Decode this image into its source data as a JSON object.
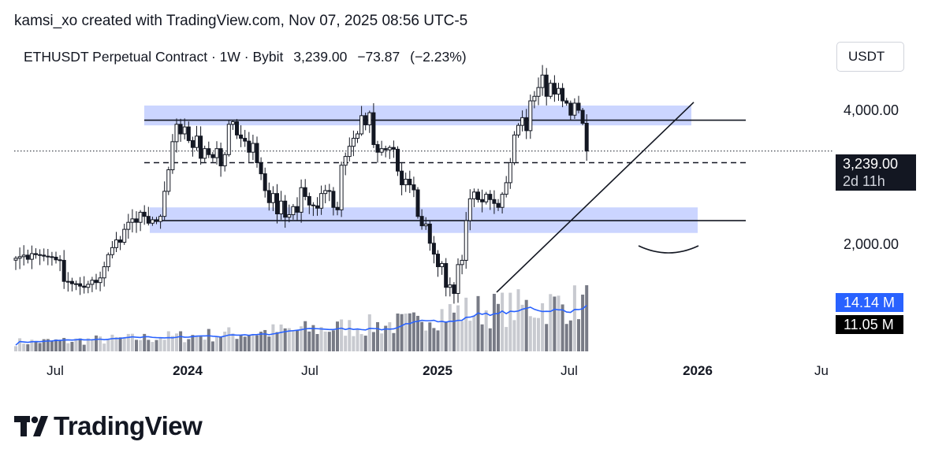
{
  "attribution": "kamsi_xo created with TradingView.com, Nov 07, 2025 08:56 UTC-5",
  "header": {
    "symbol": "ETHUSDT Perpetual Contract · 1W · Bybit",
    "last": "3,239.00",
    "change": "−73.87",
    "change_pct": "(−2.23%)"
  },
  "currency": "USDT",
  "price_axis": {
    "labels": [
      "4,000.00",
      "2,000.00"
    ]
  },
  "last_price_tag": {
    "price": "3,239.00",
    "countdown": "2d 11h"
  },
  "volume_tags": {
    "ma": "14.14 M",
    "volume": "11.05 M"
  },
  "time_axis": [
    {
      "label": "Jul",
      "bold": false
    },
    {
      "label": "2024",
      "bold": true
    },
    {
      "label": "Jul",
      "bold": false
    },
    {
      "label": "2025",
      "bold": true
    },
    {
      "label": "Jul",
      "bold": false
    },
    {
      "label": "2026",
      "bold": true
    },
    {
      "label": "Ju",
      "bold": false
    }
  ],
  "logo": {
    "wordmark": "TradingView"
  },
  "colors": {
    "zone": "#c5d0ff",
    "volume_ma": "#2962ff",
    "volume_dark": "#787b86",
    "volume_light": "#c8cad0",
    "ink": "#131722"
  },
  "chart_data": {
    "type": "candlestick",
    "interval": "1W",
    "price_scale": "log",
    "x_range": [
      "2023-05",
      "2026-07"
    ],
    "price_range": [
      1500,
      4950
    ],
    "last_price": 3239.0,
    "resistance_zone": [
      3700,
      4100
    ],
    "support_zone": [
      2120,
      2420
    ],
    "midline": 3050,
    "series": [
      {
        "name": "ETHUSDT",
        "closes": [
          1860,
          1875,
          1890,
          1850,
          1905,
          1895,
          1890,
          1880,
          1875,
          1870,
          1845,
          1840,
          1650,
          1650,
          1630,
          1630,
          1610,
          1600,
          1625,
          1660,
          1640,
          1680,
          1780,
          1895,
          1965,
          2045,
          2020,
          2160,
          2240,
          2280,
          2240,
          2360,
          2310,
          2230,
          2270,
          2250,
          2310,
          2630,
          2940,
          3400,
          3720,
          3540,
          3670,
          3420,
          3300,
          3500,
          3120,
          3280,
          3180,
          3130,
          3280,
          3000,
          3180,
          3720,
          3770,
          3520,
          3460,
          3410,
          3220,
          3370,
          3050,
          2880,
          2640,
          2480,
          2600,
          2340,
          2500,
          2300,
          2330,
          2430,
          2360,
          2680,
          2560,
          2450,
          2440,
          2410,
          2600,
          2640,
          2630,
          2420,
          2390,
          3010,
          3150,
          3320,
          3460,
          3540,
          3890,
          3710,
          3950,
          3350,
          3220,
          3280,
          3260,
          3300,
          3270,
          2920,
          2720,
          2800,
          2720,
          2650,
          2310,
          2200,
          2220,
          2010,
          1900,
          1780,
          1810,
          1600,
          1620,
          1550,
          1800,
          1840,
          2260,
          2530,
          2620,
          2520,
          2490,
          2590,
          2520,
          2470,
          2420,
          2590,
          2750,
          3050,
          3520,
          3700,
          3850,
          3600,
          4200,
          4300,
          4500,
          4800,
          4300,
          4600,
          4350,
          4480,
          4200,
          4150,
          3900,
          4150,
          4000,
          3740,
          3240
        ]
      },
      {
        "name": "Volume",
        "ma": 14.14,
        "last": 11.05,
        "unit": "M"
      }
    ],
    "annotations": [
      {
        "type": "line",
        "name": "rising-trendline",
        "from": [
          "2025-03",
          1560
        ],
        "to": [
          "2025-12",
          4170
        ]
      },
      {
        "type": "line",
        "name": "resistance-line",
        "price": 3800
      },
      {
        "type": "line",
        "name": "support-line",
        "price": 2260
      },
      {
        "type": "line",
        "name": "dashed-midline",
        "price": 3050
      },
      {
        "type": "arc",
        "name": "curved-projection",
        "price": 1950
      }
    ]
  }
}
